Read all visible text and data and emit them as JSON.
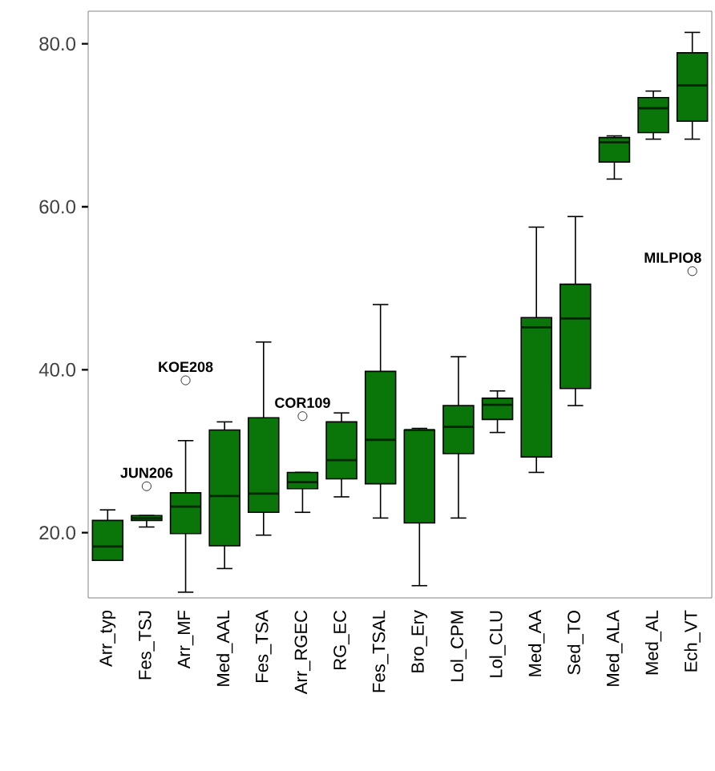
{
  "chart_data": {
    "type": "box",
    "color": "#0a760a",
    "categories": [
      "Arr_typ",
      "Fes_TSJ",
      "Arr_MF",
      "Med_AAL",
      "Fes_TSA",
      "Arr_RGEC",
      "RG_EC",
      "Fes_TSAL",
      "Bro_Ery",
      "Lol_CPM",
      "Lol_CLU",
      "Med_AA",
      "Sed_TO",
      "Med_ALA",
      "Med_AL",
      "Ech_VT"
    ],
    "boxes": [
      {
        "low": 16.6,
        "q1": 16.6,
        "median": 18.3,
        "q3": 21.5,
        "high": 22.8
      },
      {
        "low": 20.7,
        "q1": 21.5,
        "median": 21.8,
        "q3": 22.1,
        "high": 22.1,
        "outliers": [
          25.7
        ]
      },
      {
        "low": 12.7,
        "q1": 19.9,
        "median": 23.2,
        "q3": 24.9,
        "high": 31.3,
        "outliers": [
          38.7
        ]
      },
      {
        "low": 15.6,
        "q1": 18.4,
        "median": 24.5,
        "q3": 32.6,
        "high": 33.6
      },
      {
        "low": 19.7,
        "q1": 22.5,
        "median": 24.8,
        "q3": 34.1,
        "high": 43.4
      },
      {
        "low": 22.5,
        "q1": 25.4,
        "median": 26.2,
        "q3": 27.4,
        "high": 27.4,
        "outliers": [
          34.3
        ]
      },
      {
        "low": 24.4,
        "q1": 26.6,
        "median": 28.9,
        "q3": 33.6,
        "high": 34.7
      },
      {
        "low": 21.8,
        "q1": 26.0,
        "median": 31.4,
        "q3": 39.8,
        "high": 48.0
      },
      {
        "low": 13.5,
        "q1": 21.2,
        "median": 32.6,
        "q3": 32.6,
        "high": 32.8
      },
      {
        "low": 21.8,
        "q1": 29.7,
        "median": 33.0,
        "q3": 35.6,
        "high": 41.6
      },
      {
        "low": 32.3,
        "q1": 33.9,
        "median": 35.7,
        "q3": 36.5,
        "high": 37.4
      },
      {
        "low": 27.4,
        "q1": 29.3,
        "median": 45.2,
        "q3": 46.4,
        "high": 57.5
      },
      {
        "low": 35.6,
        "q1": 37.7,
        "median": 46.3,
        "q3": 50.5,
        "high": 58.8
      },
      {
        "low": 63.4,
        "q1": 65.5,
        "median": 67.9,
        "q3": 68.5,
        "high": 68.7
      },
      {
        "low": 68.3,
        "q1": 69.1,
        "median": 72.1,
        "q3": 73.4,
        "high": 74.2
      },
      {
        "low": 68.3,
        "q1": 70.5,
        "median": 74.9,
        "q3": 78.9,
        "high": 81.4,
        "outliers": [
          52.1
        ]
      }
    ],
    "ylim": [
      12,
      84
    ],
    "yticks": [
      {
        "value": 20,
        "label": "20.0"
      },
      {
        "value": 40,
        "label": "40.0"
      },
      {
        "value": 60,
        "label": "60.0"
      },
      {
        "value": 80,
        "label": "80.0"
      }
    ],
    "annotations": [
      "JUN206",
      "KOE208",
      "COR109",
      "MILPIO8"
    ]
  }
}
